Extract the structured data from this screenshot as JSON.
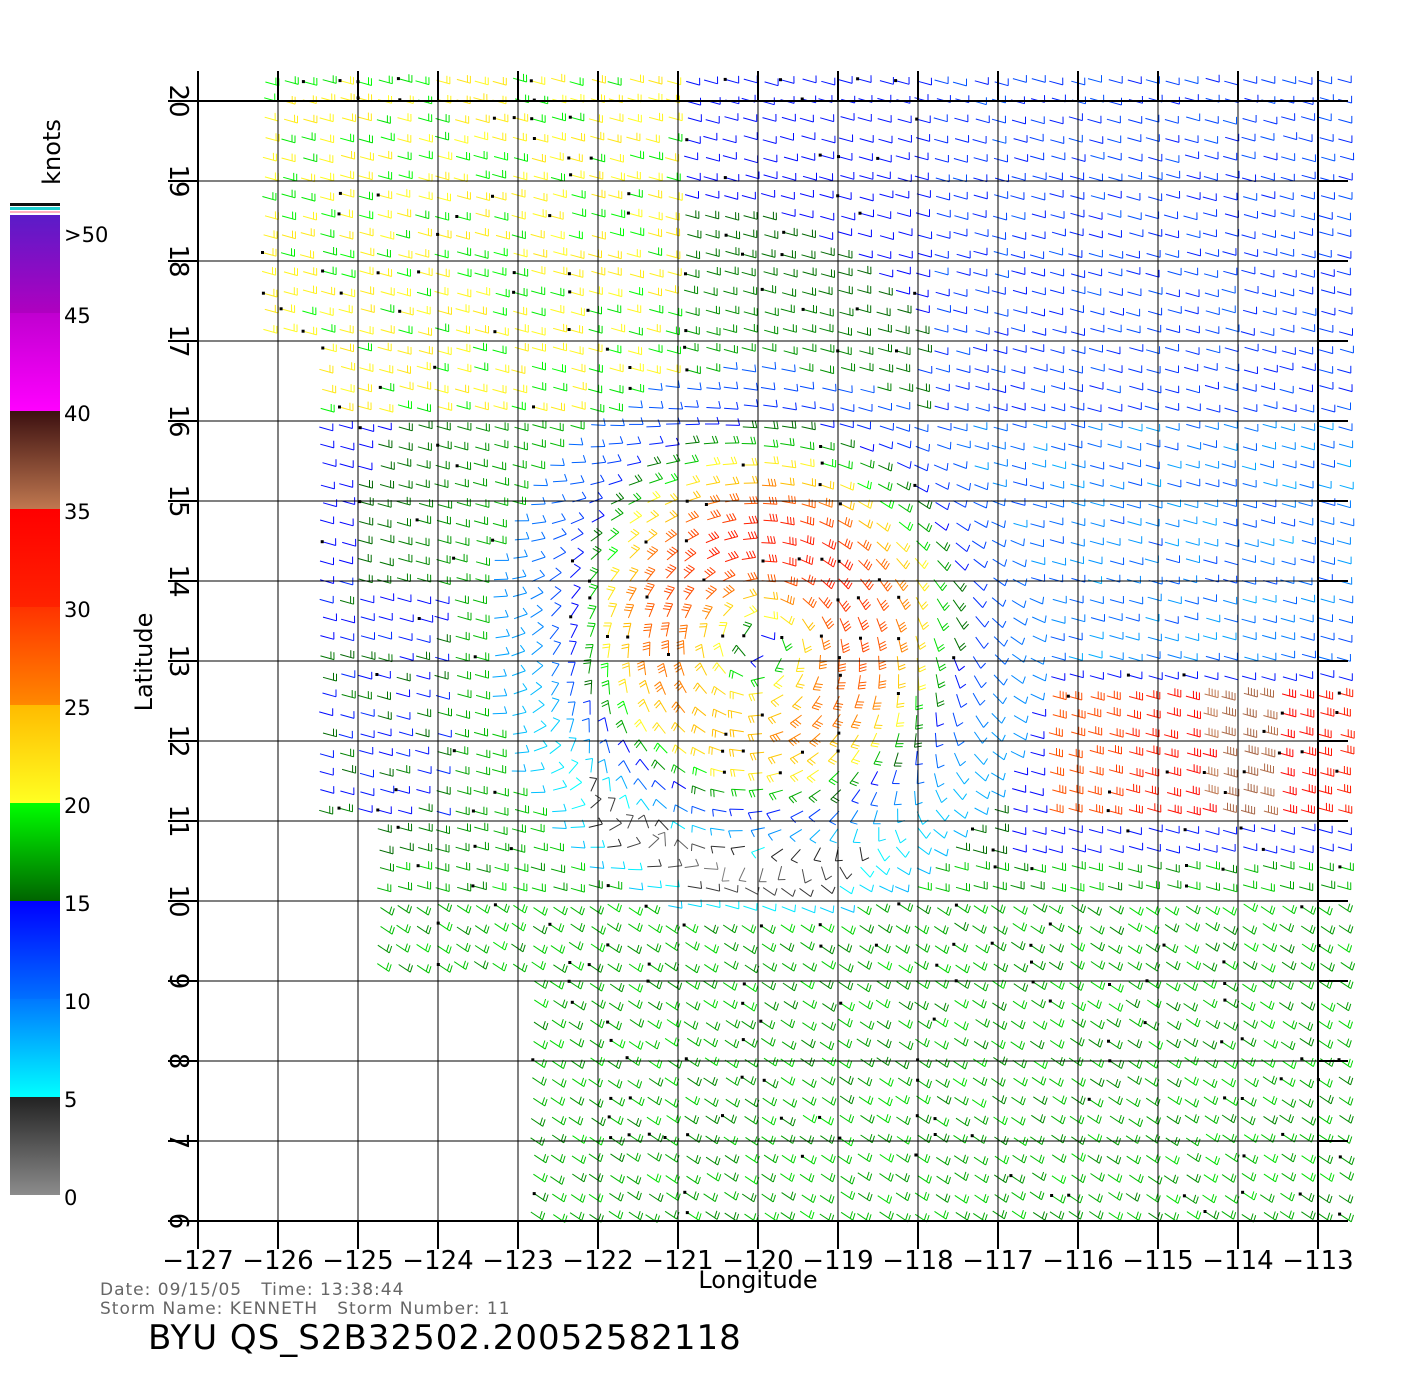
{
  "chart_data": {
    "type": "wind_barb_map",
    "xlabel": "Longitude",
    "ylabel": "Latitude",
    "xlim": [
      -127,
      -112.5
    ],
    "ylim": [
      6,
      20
    ],
    "xticks": [
      -127,
      -126,
      -125,
      -124,
      -123,
      -122,
      -121,
      -120,
      -119,
      -118,
      -117,
      -116,
      -115,
      -114,
      -113
    ],
    "yticks": [
      6,
      7,
      8,
      9,
      10,
      11,
      12,
      13,
      14,
      15,
      16,
      17,
      18,
      19,
      20
    ],
    "grid": true,
    "colorbar": {
      "label": "knots",
      "ticks": [
        "0",
        "5",
        "10",
        "15",
        "20",
        "25",
        "30",
        "35",
        "40",
        "45",
        ">50"
      ],
      "segments": [
        {
          "from": 0,
          "to": 5,
          "colors": [
            "#8c8c8c",
            "#222222"
          ]
        },
        {
          "from": 5,
          "to": 10,
          "colors": [
            "#00ffff",
            "#0078ff"
          ]
        },
        {
          "from": 10,
          "to": 15,
          "colors": [
            "#0070ff",
            "#0000ff"
          ]
        },
        {
          "from": 15,
          "to": 20,
          "colors": [
            "#006400",
            "#00ff00"
          ]
        },
        {
          "from": 20,
          "to": 25,
          "colors": [
            "#ffff22",
            "#ffbb00"
          ]
        },
        {
          "from": 25,
          "to": 30,
          "colors": [
            "#ff8800",
            "#ff3300"
          ]
        },
        {
          "from": 30,
          "to": 35,
          "colors": [
            "#ff2200",
            "#ff0000"
          ]
        },
        {
          "from": 35,
          "to": 40,
          "colors": [
            "#c07850",
            "#3c1010"
          ]
        },
        {
          "from": 40,
          "to": 45,
          "colors": [
            "#ff00ff",
            "#c000d0"
          ]
        },
        {
          "from": 45,
          "to": 50,
          "colors": [
            "#b000c0",
            "#5a1cc8"
          ]
        }
      ]
    },
    "storm_center": {
      "lon": -120.0,
      "lat": 13.2
    },
    "secondary_jet": {
      "lon": -114.0,
      "lat": 12.3
    },
    "swath": {
      "lat_min": 6,
      "lat_max": 20
    }
  },
  "info": {
    "line1": "Date: 09/15/05   Time: 13:38:44",
    "line2": "Storm Name: KENNETH   Storm Number: 11",
    "title": "BYU QS_S2B32502.20052582118"
  }
}
